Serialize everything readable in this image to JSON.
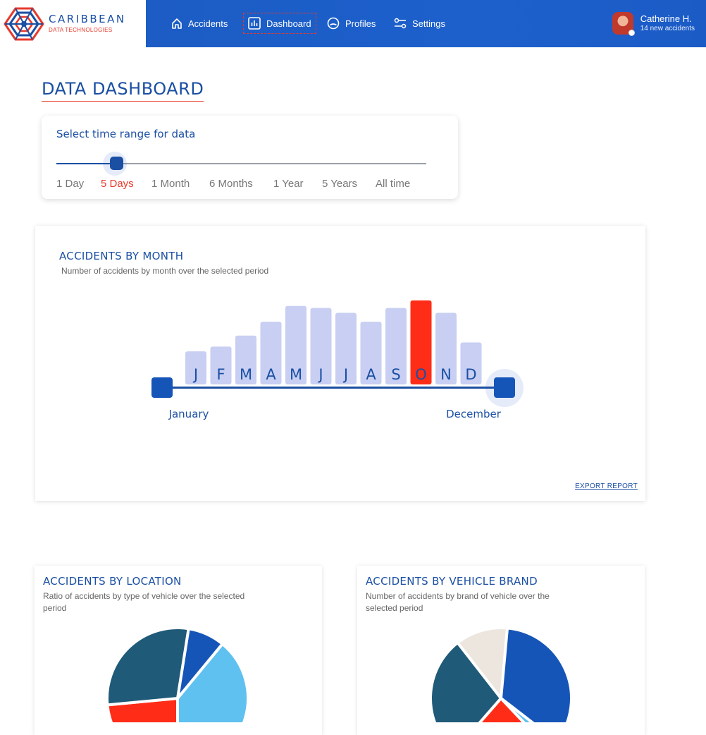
{
  "brand": {
    "name": "CARIBBEAN",
    "sub": "DATA TECHNOLOGIES"
  },
  "nav": {
    "items": [
      {
        "label": "Accidents",
        "icon": "home-icon"
      },
      {
        "label": "Dashboard",
        "icon": "bar-chart-icon"
      },
      {
        "label": "Profiles",
        "icon": "profile-icon"
      },
      {
        "label": "Settings",
        "icon": "settings-sliders-icon"
      }
    ],
    "active": "Dashboard"
  },
  "user": {
    "name": "Catherine H.",
    "subtitle": "14 new accidents"
  },
  "page": {
    "title": "DATA DASHBOARD"
  },
  "time_range": {
    "title": "Select time range for data",
    "options": [
      "1 Day",
      "5 Days",
      "1 Month",
      "6 Months",
      "1 Year",
      "5 Years",
      "All time"
    ],
    "selected": "5 Days"
  },
  "month_card": {
    "title": "ACCIDENTS BY MONTH",
    "subtitle": "Number of accidents by month over the selected period",
    "range_start": "January",
    "range_end": "December",
    "export_label": "EXPORT REPORT"
  },
  "location_card": {
    "title": "ACCIDENTS BY LOCATION",
    "subtitle": "Ratio of accidents by type of vehicle over the selected period"
  },
  "brand_card": {
    "title": "ACCIDENTS BY VEHICLE BRAND",
    "subtitle": "Number of accidents by brand of vehicle over the selected period"
  },
  "colors": {
    "primary": "#1a4fa3",
    "accent": "#e8392b",
    "bar": "#c8cff2",
    "bar_highlight": "#ff2d17"
  },
  "chart_data": [
    {
      "type": "bar",
      "categories": [
        "J",
        "F",
        "M",
        "A",
        "M",
        "J",
        "J",
        "A",
        "S",
        "O",
        "N",
        "D"
      ],
      "values": [
        48,
        55,
        71,
        91,
        114,
        111,
        104,
        91,
        111,
        122,
        104,
        61
      ],
      "highlight_index": 9,
      "ylim": [
        0,
        125
      ],
      "grid": false
    },
    {
      "type": "pie",
      "values": [
        8.5,
        39,
        23.5,
        29
      ],
      "colors": [
        "#1655b8",
        "#5fc1f0",
        "#ff2d17",
        "#1f5a78"
      ],
      "start_angle": 9
    },
    {
      "type": "pie",
      "values": [
        12,
        34,
        2.5,
        23.5,
        28
      ],
      "colors": [
        "#ece6df",
        "#1655b8",
        "#5fc1f0",
        "#ff2d17",
        "#1f5a78"
      ],
      "start_angle": -38
    }
  ]
}
